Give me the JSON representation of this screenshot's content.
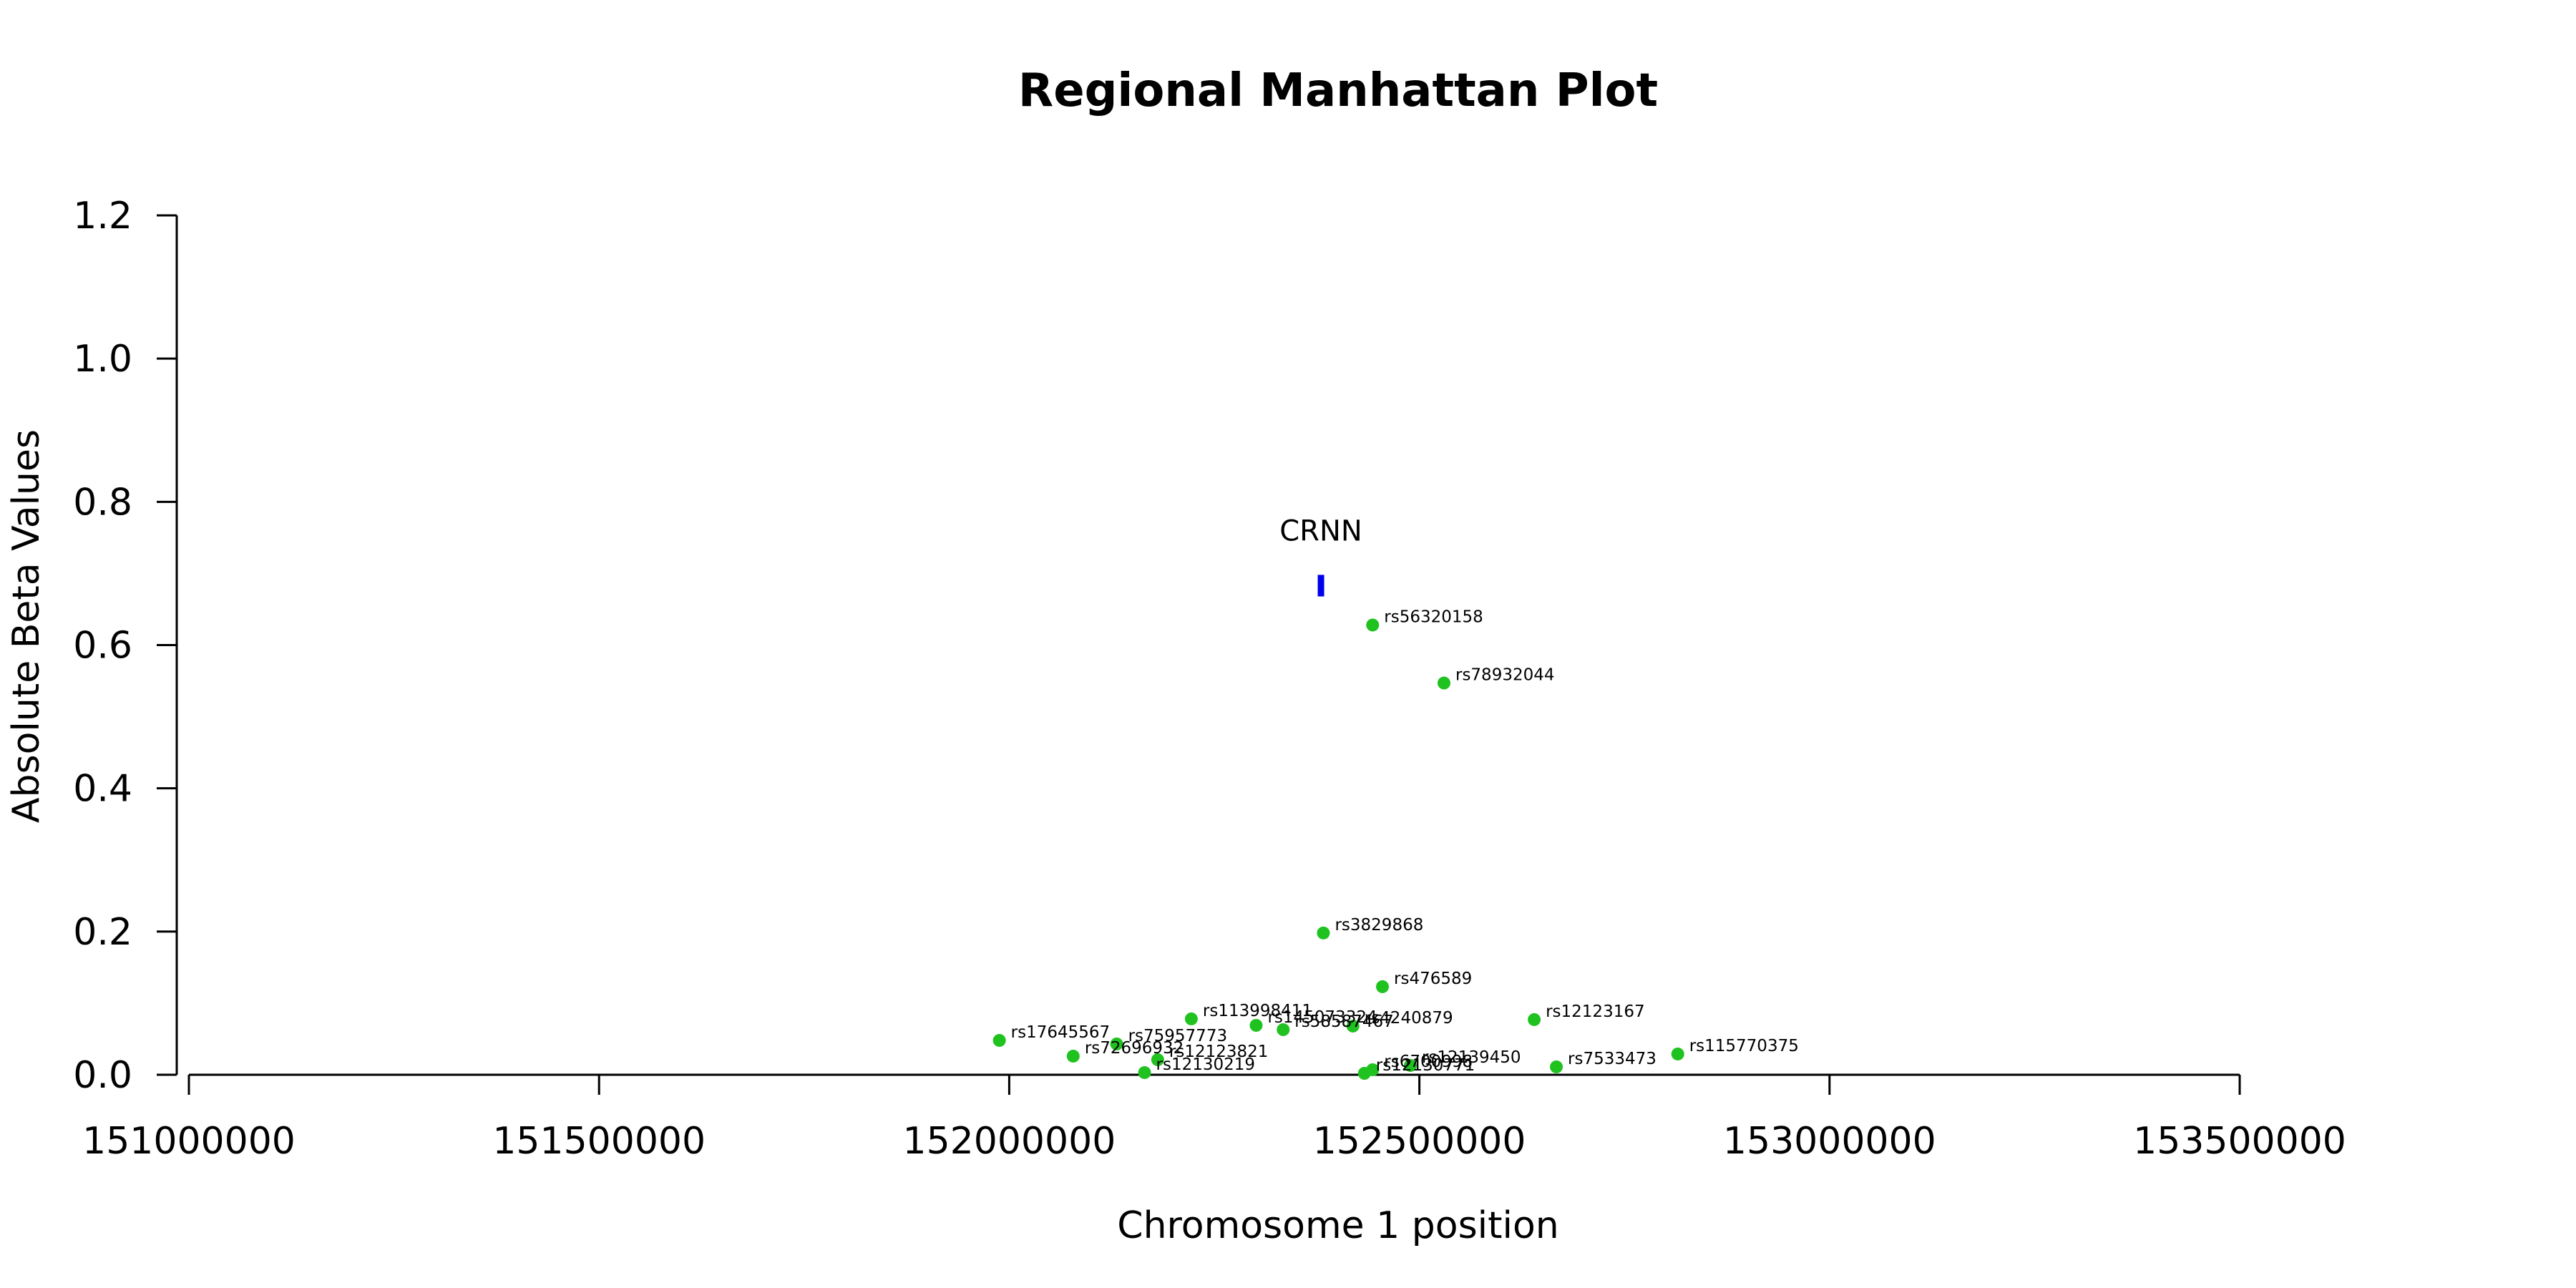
{
  "chart_data": {
    "type": "scatter",
    "title": "Regional Manhattan Plot",
    "xlabel": "Chromosome 1 position",
    "ylabel": "Absolute Beta Values",
    "xlim": [
      151000000,
      153500000
    ],
    "ylim": [
      0,
      1.2
    ],
    "x_ticks": [
      151000000,
      151500000,
      152000000,
      152500000,
      153000000,
      153500000
    ],
    "y_ticks": [
      0.0,
      0.2,
      0.4,
      0.6,
      0.8,
      1.0,
      1.2
    ],
    "x_tick_labels": [
      "151000000",
      "151500000",
      "152000000",
      "152500000",
      "153000000",
      "153500000"
    ],
    "y_tick_labels": [
      "0.0",
      "0.2",
      "0.4",
      "0.6",
      "0.8",
      "1.0",
      "1.2"
    ],
    "point_color": "#1fc21f",
    "gene_color": "#0000ee",
    "gene": {
      "name": "CRNN",
      "x": 152380000,
      "y_range": [
        0.668,
        0.698
      ]
    },
    "points": [
      {
        "label": "rs56320158",
        "x": 152443000,
        "y": 0.628
      },
      {
        "label": "rs78932044",
        "x": 152530000,
        "y": 0.547
      },
      {
        "label": "rs3829868",
        "x": 152383000,
        "y": 0.198
      },
      {
        "label": "rs476589",
        "x": 152455000,
        "y": 0.123
      },
      {
        "label": "rs12123167",
        "x": 152640000,
        "y": 0.077
      },
      {
        "label": "rs113998411",
        "x": 152222000,
        "y": 0.078
      },
      {
        "label": "rs145073324",
        "x": 152301000,
        "y": 0.069
      },
      {
        "label": "rs58587467",
        "x": 152334000,
        "y": 0.063
      },
      {
        "label": "rs4240879",
        "x": 152419000,
        "y": 0.068
      },
      {
        "label": "rs17645567",
        "x": 151988000,
        "y": 0.048
      },
      {
        "label": "rs75957773",
        "x": 152131000,
        "y": 0.043
      },
      {
        "label": "rs72696932",
        "x": 152078000,
        "y": 0.026
      },
      {
        "label": "rs12123821",
        "x": 152181000,
        "y": 0.021
      },
      {
        "label": "rs12130219",
        "x": 152165000,
        "y": 0.003
      },
      {
        "label": "rs115770375",
        "x": 152815000,
        "y": 0.029
      },
      {
        "label": "rs7533473",
        "x": 152667000,
        "y": 0.011
      },
      {
        "label": "rs12139450",
        "x": 152489000,
        "y": 0.013
      },
      {
        "label": "rs6700998",
        "x": 152443000,
        "y": 0.007
      },
      {
        "label": "rs12130771",
        "x": 152433000,
        "y": 0.002
      }
    ]
  }
}
